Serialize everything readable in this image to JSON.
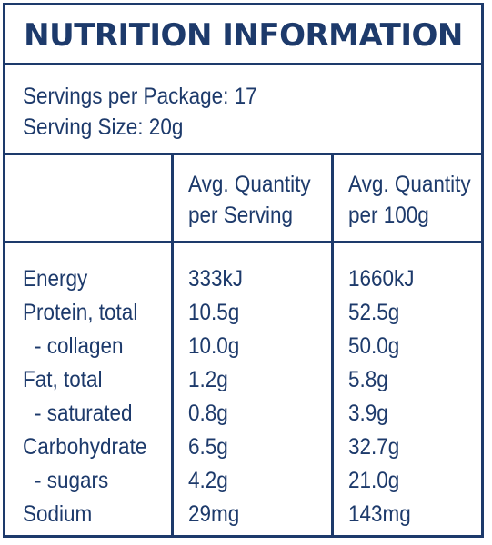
{
  "title": "NUTRITION INFORMATION",
  "servings": {
    "per_package": "Servings per Package: 17",
    "serving_size": "Serving Size: 20g"
  },
  "columns": {
    "per_serving": [
      "Avg. Quantity",
      "per Serving"
    ],
    "per_100g": [
      "Avg. Quantity",
      "per 100g"
    ]
  },
  "rows": [
    {
      "label": "Energy",
      "per_serving": "333kJ",
      "per_100g": "1660kJ"
    },
    {
      "label": "Protein, total",
      "per_serving": "10.5g",
      "per_100g": "52.5g"
    },
    {
      "label": "- collagen",
      "per_serving": "10.0g",
      "per_100g": "50.0g"
    },
    {
      "label": "Fat, total",
      "per_serving": "1.2g",
      "per_100g": "5.8g"
    },
    {
      "label": "- saturated",
      "per_serving": "0.8g",
      "per_100g": "3.9g"
    },
    {
      "label": "Carbohydrate",
      "per_serving": "6.5g",
      "per_100g": "32.7g"
    },
    {
      "label": "- sugars",
      "per_serving": "4.2g",
      "per_100g": "21.0g"
    },
    {
      "label": "Sodium",
      "per_serving": "29mg",
      "per_100g": "143mg"
    }
  ],
  "colors": {
    "ink": "#1d3a6b",
    "background": "#ffffff"
  }
}
